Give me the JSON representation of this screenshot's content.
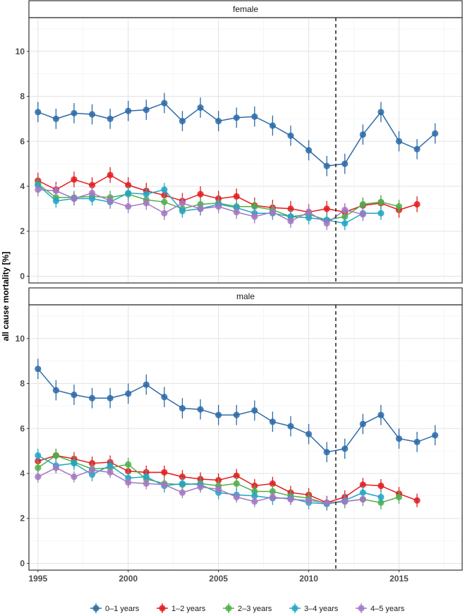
{
  "chart_data": {
    "type": "line",
    "ylabel": "all cause mortality [%]",
    "xlim": [
      1994.5,
      2018.5
    ],
    "ylim": [
      -0.3,
      11.5
    ],
    "x_ticks": [
      1995,
      2000,
      2005,
      2010,
      2015
    ],
    "y_ticks": [
      0,
      2,
      4,
      6,
      8,
      10
    ],
    "reference_line_x": 2011.5,
    "grid": true,
    "legend_position": "bottom",
    "series_colors": {
      "0–1 years": "#2c6aa8",
      "1–2 years": "#e41a1c",
      "2–3 years": "#4daf4a",
      "3–4 years": "#1fa6c4",
      "4–5 years": "#a377c2"
    },
    "series_names": [
      "0–1 years",
      "1–2 years",
      "2–3 years",
      "3–4 years",
      "4–5 years"
    ],
    "panels": [
      {
        "label": "female",
        "series": [
          {
            "name": "0–1 years",
            "x": [
              1995,
              1996,
              1997,
              1998,
              1999,
              2000,
              2001,
              2002,
              2003,
              2004,
              2005,
              2006,
              2007,
              2008,
              2009,
              2010,
              2011,
              2012,
              2013,
              2014,
              2015,
              2016,
              2017
            ],
            "values": [
              7.3,
              7.0,
              7.25,
              7.2,
              7.0,
              7.35,
              7.4,
              7.7,
              6.9,
              7.5,
              6.9,
              7.05,
              7.1,
              6.7,
              6.25,
              5.6,
              4.9,
              5.0,
              6.3,
              7.3,
              6.0,
              5.65,
              6.35
            ],
            "err": 0.45
          },
          {
            "name": "1–2 years",
            "x": [
              1995,
              1996,
              1997,
              1998,
              1999,
              2000,
              2001,
              2002,
              2003,
              2004,
              2005,
              2006,
              2007,
              2008,
              2009,
              2010,
              2011,
              2012,
              2013,
              2014,
              2015,
              2016
            ],
            "values": [
              4.25,
              3.85,
              4.3,
              4.05,
              4.5,
              4.05,
              3.8,
              3.6,
              3.35,
              3.65,
              3.45,
              3.55,
              3.15,
              3.05,
              3.0,
              2.85,
              3.0,
              2.85,
              3.15,
              3.25,
              2.95,
              3.2
            ],
            "err": 0.35
          },
          {
            "name": "2–3 years",
            "x": [
              1995,
              1996,
              1997,
              1998,
              1999,
              2000,
              2001,
              2002,
              2003,
              2004,
              2005,
              2006,
              2007,
              2008,
              2009,
              2010,
              2011,
              2012,
              2013,
              2014,
              2015
            ],
            "values": [
              4.1,
              3.5,
              3.5,
              3.55,
              3.5,
              3.65,
              3.4,
              3.3,
              3.0,
              3.2,
              3.25,
              3.1,
              3.1,
              2.95,
              2.65,
              2.75,
              2.5,
              2.65,
              3.2,
              3.3,
              3.1
            ],
            "err": 0.3
          },
          {
            "name": "3–4 years",
            "x": [
              1995,
              1996,
              1997,
              1998,
              1999,
              2000,
              2001,
              2002,
              2003,
              2004,
              2005,
              2006,
              2007,
              2008,
              2009,
              2010,
              2011,
              2012,
              2013,
              2014
            ],
            "values": [
              4.05,
              3.35,
              3.45,
              3.45,
              3.3,
              3.7,
              3.65,
              3.85,
              2.9,
              3.0,
              3.2,
              3.05,
              2.8,
              2.8,
              2.65,
              2.6,
              2.5,
              2.35,
              2.8,
              2.8
            ],
            "err": 0.3
          },
          {
            "name": "4–5 years",
            "x": [
              1995,
              1996,
              1997,
              1998,
              1999,
              2000,
              2001,
              2002,
              2003,
              2004,
              2005,
              2006,
              2007,
              2008,
              2009,
              2010,
              2011,
              2012,
              2013
            ],
            "values": [
              3.85,
              3.8,
              3.45,
              3.7,
              3.35,
              3.1,
              3.25,
              2.8,
              3.25,
              3.0,
              3.1,
              2.85,
              2.65,
              2.85,
              2.45,
              2.85,
              2.35,
              2.95,
              2.75
            ],
            "err": 0.3
          }
        ]
      },
      {
        "label": "male",
        "series": [
          {
            "name": "0–1 years",
            "x": [
              1995,
              1996,
              1997,
              1998,
              1999,
              2000,
              2001,
              2002,
              2003,
              2004,
              2005,
              2006,
              2007,
              2008,
              2009,
              2010,
              2011,
              2012,
              2013,
              2014,
              2015,
              2016,
              2017
            ],
            "values": [
              8.65,
              7.7,
              7.5,
              7.35,
              7.35,
              7.55,
              7.95,
              7.4,
              6.9,
              6.85,
              6.6,
              6.6,
              6.8,
              6.3,
              6.1,
              5.75,
              4.95,
              5.1,
              6.2,
              6.6,
              5.55,
              5.4,
              5.7
            ],
            "err": 0.45
          },
          {
            "name": "1–2 years",
            "x": [
              1995,
              1996,
              1997,
              1998,
              1999,
              2000,
              2001,
              2002,
              2003,
              2004,
              2005,
              2006,
              2007,
              2008,
              2009,
              2010,
              2011,
              2012,
              2013,
              2014,
              2015,
              2016
            ],
            "values": [
              4.55,
              4.8,
              4.65,
              4.45,
              4.5,
              4.1,
              4.05,
              4.05,
              3.85,
              3.75,
              3.7,
              3.9,
              3.45,
              3.55,
              3.15,
              3.05,
              2.7,
              2.95,
              3.5,
              3.45,
              3.1,
              2.8
            ],
            "err": 0.3
          },
          {
            "name": "2–3 years",
            "x": [
              1995,
              1996,
              1997,
              1998,
              1999,
              2000,
              2001,
              2002,
              2003,
              2004,
              2005,
              2006,
              2007,
              2008,
              2009,
              2010,
              2011,
              2012,
              2013,
              2014,
              2015
            ],
            "values": [
              4.25,
              4.8,
              4.5,
              4.2,
              4.25,
              4.4,
              3.75,
              3.55,
              3.5,
              3.55,
              3.45,
              3.55,
              3.2,
              3.2,
              3.0,
              2.9,
              2.65,
              2.75,
              2.85,
              2.7,
              2.95
            ],
            "err": 0.3
          },
          {
            "name": "3–4 years",
            "x": [
              1995,
              1996,
              1997,
              1998,
              1999,
              2000,
              2001,
              2002,
              2003,
              2004,
              2005,
              2006,
              2007,
              2008,
              2009,
              2010,
              2011,
              2012,
              2013,
              2014
            ],
            "values": [
              4.8,
              4.35,
              4.45,
              3.95,
              4.35,
              3.8,
              3.85,
              3.45,
              3.55,
              3.5,
              3.15,
              3.05,
              3.0,
              2.9,
              2.9,
              2.7,
              2.65,
              2.8,
              3.15,
              2.95
            ],
            "err": 0.3
          },
          {
            "name": "4–5 years",
            "x": [
              1995,
              1996,
              1997,
              1998,
              1999,
              2000,
              2001,
              2002,
              2003,
              2004,
              2005,
              2006,
              2007,
              2008,
              2009,
              2010,
              2011,
              2012,
              2013
            ],
            "values": [
              3.85,
              4.25,
              3.85,
              4.15,
              4.05,
              3.6,
              3.55,
              3.5,
              3.15,
              3.4,
              3.3,
              2.95,
              2.75,
              2.95,
              2.85,
              2.8,
              2.7,
              2.75,
              2.85
            ],
            "err": 0.25
          }
        ]
      }
    ]
  }
}
